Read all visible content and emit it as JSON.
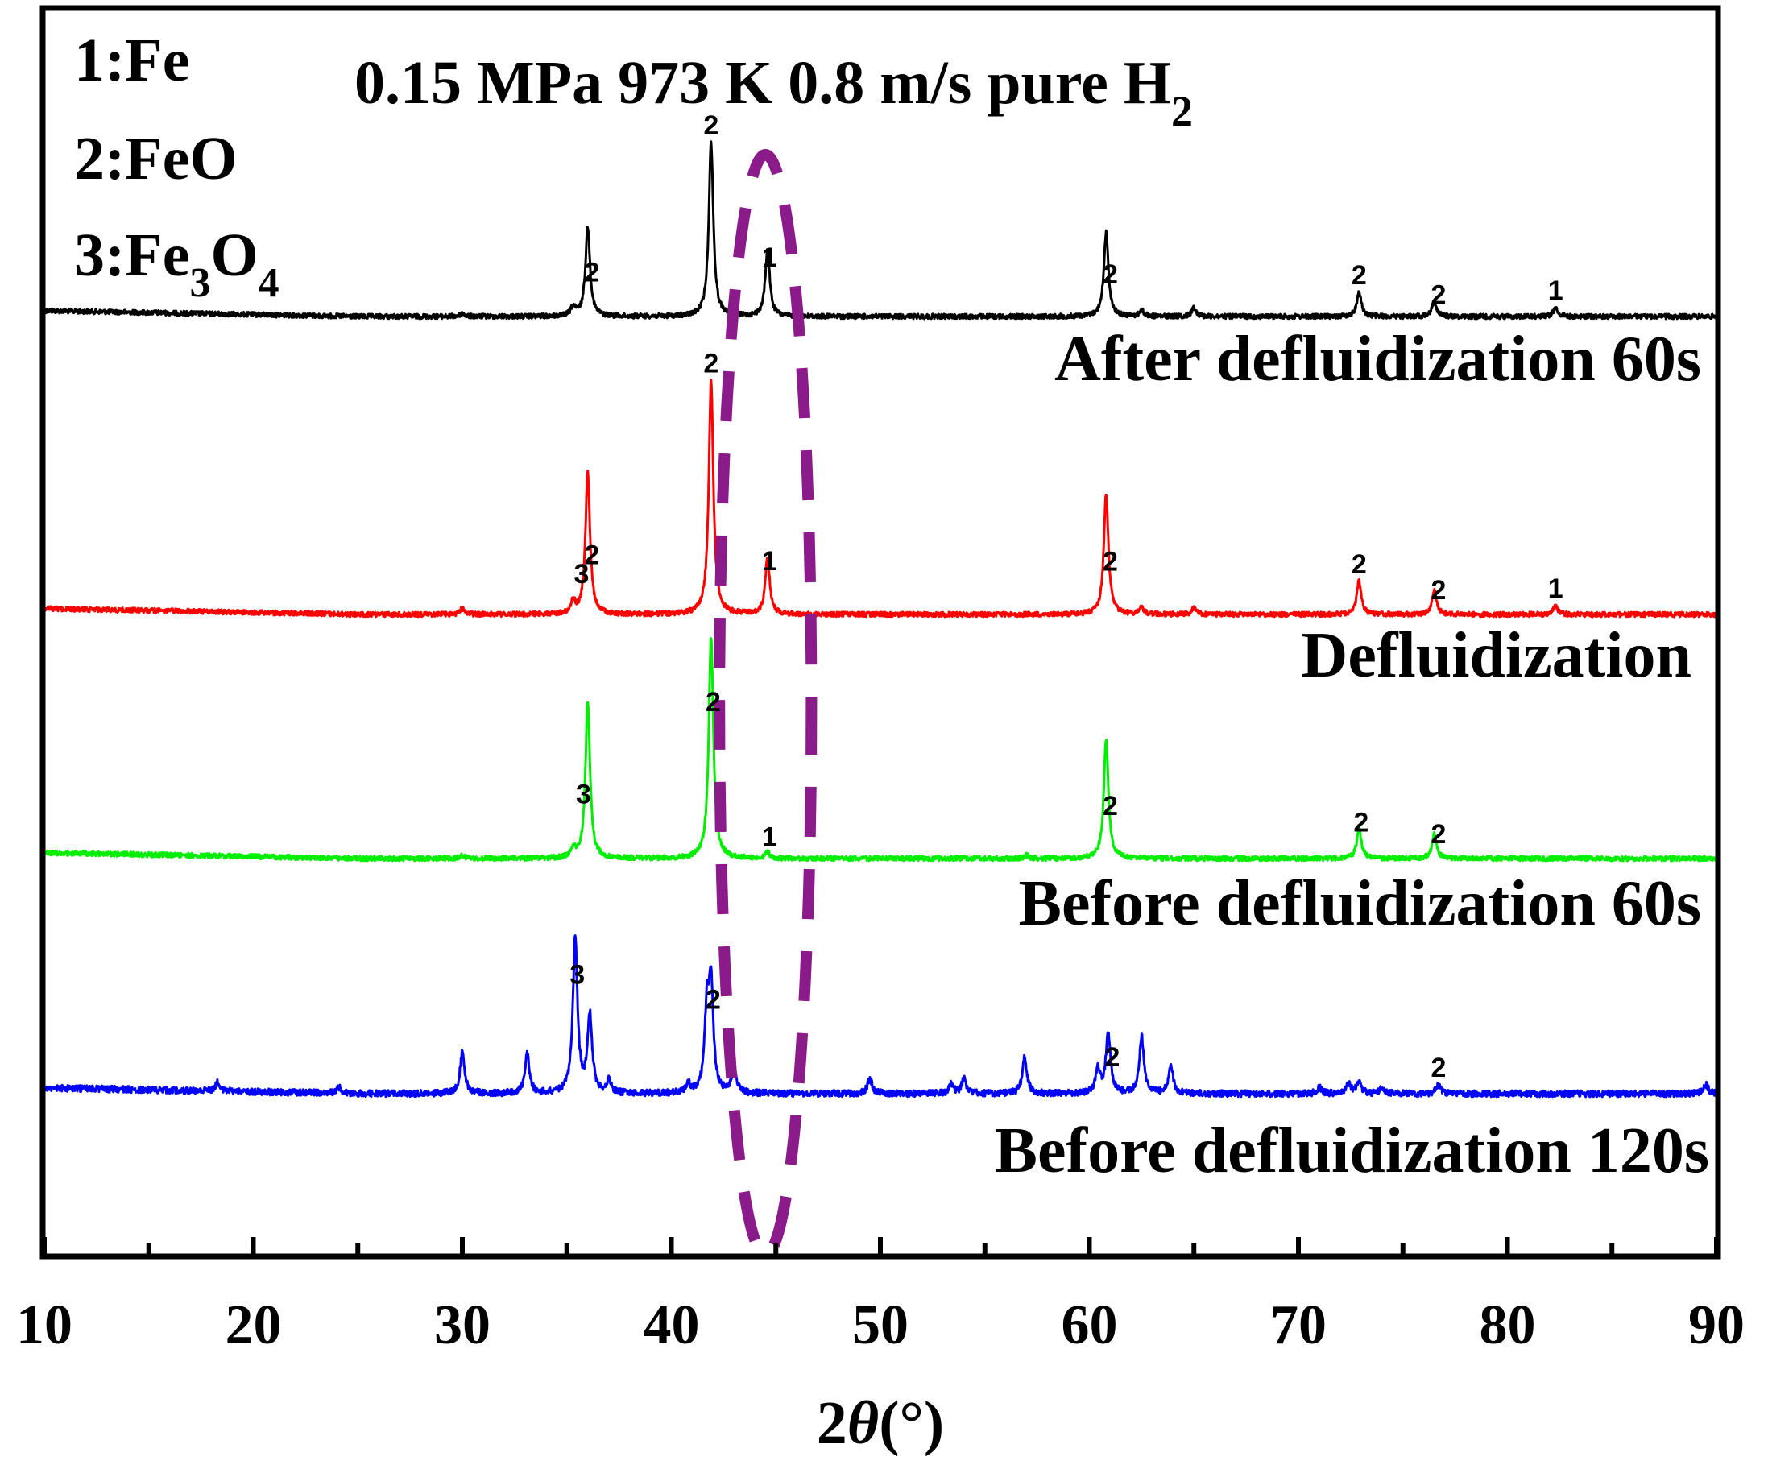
{
  "chart_data": {
    "type": "line",
    "title": "0.15 MPa 973 K  0.8 m/s pure H",
    "title_sub": "2",
    "xlabel_prefix": "2",
    "xlabel_theta": "θ",
    "xlabel_suffix": "(°)",
    "xlim": [
      10,
      90
    ],
    "x_ticks": [
      10,
      20,
      30,
      40,
      50,
      60,
      70,
      80,
      90
    ],
    "x_tick_labels": [
      "10",
      "20",
      "30",
      "40",
      "50",
      "60",
      "70",
      "80",
      "90"
    ],
    "legend": {
      "fe": "1:Fe",
      "feo": "2:FeO",
      "fe3o4_a": "3:Fe",
      "fe3o4_b": "3",
      "fe3o4_c": "O",
      "fe3o4_d": "4"
    },
    "highlight": {
      "center_x": 44.5,
      "half_width": 2.2,
      "color": "#8b1a8b"
    },
    "series": [
      {
        "name": "After defluidization 60s",
        "color": "#000000",
        "peaks": [
          {
            "x": 35.3,
            "h": 0.03
          },
          {
            "x": 36.0,
            "h": 0.3
          },
          {
            "x": 41.9,
            "h": 0.58
          },
          {
            "x": 44.6,
            "h": 0.22
          },
          {
            "x": 60.8,
            "h": 0.28
          },
          {
            "x": 62.5,
            "h": 0.02
          },
          {
            "x": 65.0,
            "h": 0.03
          },
          {
            "x": 72.9,
            "h": 0.08
          },
          {
            "x": 76.5,
            "h": 0.05
          },
          {
            "x": 82.3,
            "h": 0.03
          },
          {
            "x": 30.0,
            "h": 0.01
          }
        ],
        "labels": [
          {
            "x": 36.2,
            "text": "2"
          },
          {
            "x": 41.9,
            "text": "2"
          },
          {
            "x": 44.7,
            "text": "1"
          },
          {
            "x": 61.0,
            "text": "2"
          },
          {
            "x": 72.9,
            "text": "2"
          },
          {
            "x": 76.7,
            "text": "2"
          },
          {
            "x": 82.3,
            "text": "1"
          }
        ]
      },
      {
        "name": "Defluidization",
        "color": "#ff0000",
        "peaks": [
          {
            "x": 35.3,
            "h": 0.04
          },
          {
            "x": 36.0,
            "h": 0.47
          },
          {
            "x": 41.9,
            "h": 0.78
          },
          {
            "x": 44.6,
            "h": 0.19
          },
          {
            "x": 60.8,
            "h": 0.4
          },
          {
            "x": 62.5,
            "h": 0.02
          },
          {
            "x": 65.0,
            "h": 0.02
          },
          {
            "x": 72.9,
            "h": 0.11
          },
          {
            "x": 76.5,
            "h": 0.08
          },
          {
            "x": 82.3,
            "h": 0.03
          },
          {
            "x": 30.0,
            "h": 0.02
          }
        ],
        "labels": [
          {
            "x": 35.7,
            "text": "3"
          },
          {
            "x": 36.2,
            "text": "2"
          },
          {
            "x": 41.9,
            "text": "2"
          },
          {
            "x": 44.7,
            "text": "1"
          },
          {
            "x": 61.0,
            "text": "2"
          },
          {
            "x": 72.9,
            "text": "2"
          },
          {
            "x": 76.7,
            "text": "2"
          },
          {
            "x": 82.3,
            "text": "1"
          }
        ]
      },
      {
        "name": "Before defluidization 60s",
        "color": "#00ee00",
        "peaks": [
          {
            "x": 35.3,
            "h": 0.03
          },
          {
            "x": 36.0,
            "h": 0.52
          },
          {
            "x": 41.9,
            "h": 0.74
          },
          {
            "x": 44.6,
            "h": 0.02
          },
          {
            "x": 60.8,
            "h": 0.4
          },
          {
            "x": 72.9,
            "h": 0.1
          },
          {
            "x": 76.5,
            "h": 0.08
          },
          {
            "x": 30.0,
            "h": 0.01
          },
          {
            "x": 57.0,
            "h": 0.01
          }
        ],
        "labels": [
          {
            "x": 35.8,
            "text": "3"
          },
          {
            "x": 42.0,
            "text": "2"
          },
          {
            "x": 44.7,
            "text": "1"
          },
          {
            "x": 61.0,
            "text": "2"
          },
          {
            "x": 73.0,
            "text": "2"
          },
          {
            "x": 76.7,
            "text": "2"
          }
        ]
      },
      {
        "name": "Before defluidization 120s",
        "color": "#0000ff",
        "peaks": [
          {
            "x": 18.3,
            "h": 0.03
          },
          {
            "x": 24.1,
            "h": 0.02
          },
          {
            "x": 30.0,
            "h": 0.14
          },
          {
            "x": 33.1,
            "h": 0.13
          },
          {
            "x": 35.4,
            "h": 0.52
          },
          {
            "x": 36.1,
            "h": 0.26
          },
          {
            "x": 37.0,
            "h": 0.04
          },
          {
            "x": 40.8,
            "h": 0.03
          },
          {
            "x": 41.7,
            "h": 0.26
          },
          {
            "x": 41.9,
            "h": 0.34
          },
          {
            "x": 43.0,
            "h": 0.08
          },
          {
            "x": 49.5,
            "h": 0.05
          },
          {
            "x": 53.4,
            "h": 0.03
          },
          {
            "x": 54.0,
            "h": 0.05
          },
          {
            "x": 56.9,
            "h": 0.12
          },
          {
            "x": 60.4,
            "h": 0.08
          },
          {
            "x": 60.9,
            "h": 0.2
          },
          {
            "x": 62.5,
            "h": 0.19
          },
          {
            "x": 63.9,
            "h": 0.09
          },
          {
            "x": 71.0,
            "h": 0.02
          },
          {
            "x": 72.4,
            "h": 0.03
          },
          {
            "x": 72.9,
            "h": 0.04
          },
          {
            "x": 74.0,
            "h": 0.02
          },
          {
            "x": 76.7,
            "h": 0.03
          },
          {
            "x": 89.5,
            "h": 0.03
          }
        ],
        "labels": [
          {
            "x": 35.5,
            "text": "3"
          },
          {
            "x": 42.0,
            "text": "2"
          },
          {
            "x": 61.1,
            "text": "2"
          },
          {
            "x": 76.7,
            "text": "2"
          }
        ]
      }
    ]
  }
}
